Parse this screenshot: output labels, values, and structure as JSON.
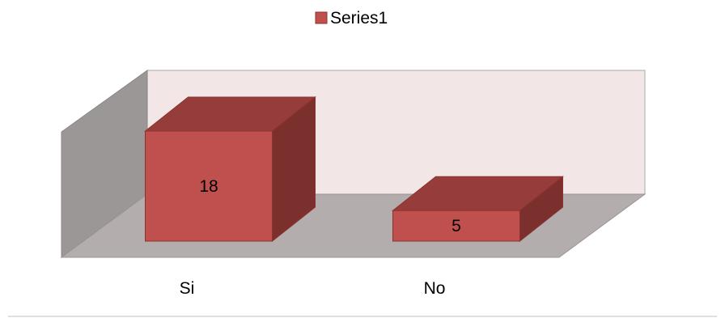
{
  "chart_data": {
    "type": "bar",
    "style": "3d-column",
    "categories": [
      "Si",
      "No"
    ],
    "series": [
      {
        "name": "Series1",
        "values": [
          18,
          5
        ]
      }
    ],
    "title": "",
    "xlabel": "",
    "ylabel": "",
    "ylim": [
      0,
      18
    ],
    "legend": {
      "position": "top",
      "entries": [
        "Series1"
      ]
    },
    "grid": false,
    "colors": {
      "bar_front": "#c0504d",
      "bar_top": "#963c3a",
      "bar_side": "#7c302e",
      "bar_stroke": "#8c3330",
      "back_wall": "#f2e6e6",
      "side_wall": "#9c9797",
      "floor": "#b3adad",
      "wall_edge": "#999999",
      "baseline": "#bfbfbf"
    }
  }
}
